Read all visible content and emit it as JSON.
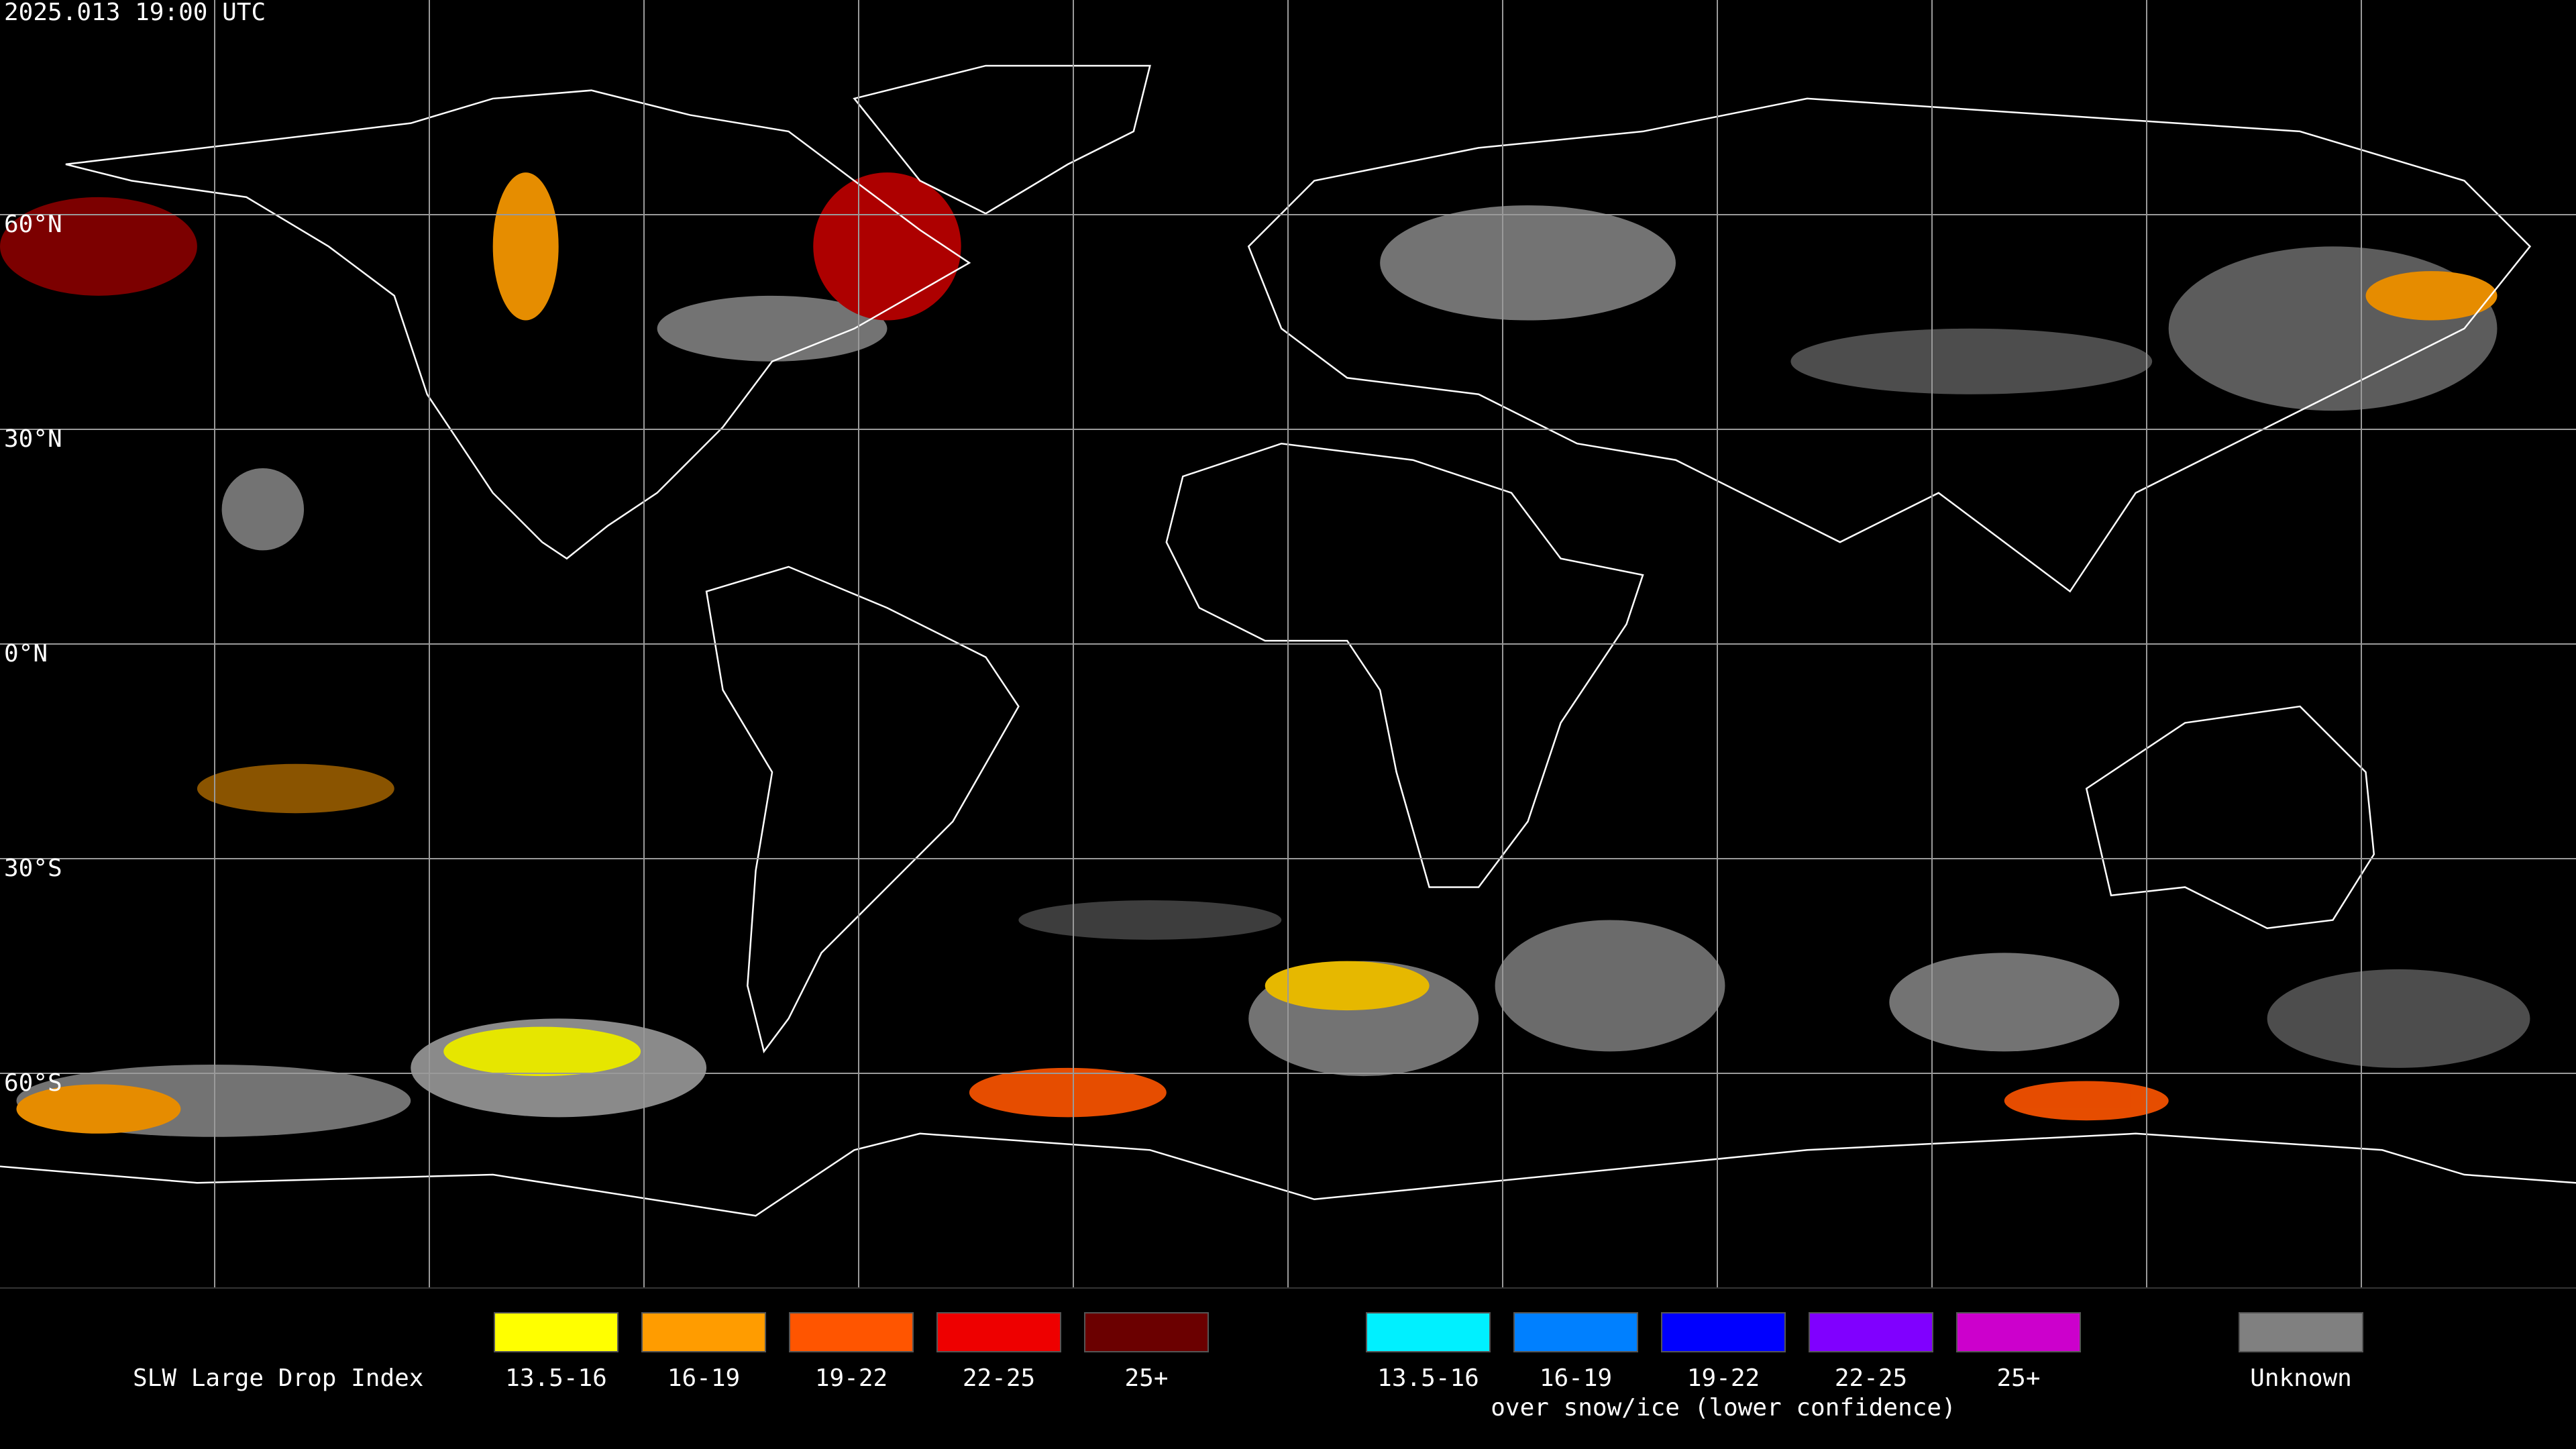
{
  "header": {
    "timestamp": "2025.013 19:00 UTC"
  },
  "map": {
    "latitude_labels": [
      "60°N",
      "30°N",
      "0°N",
      "30°S",
      "60°S"
    ]
  },
  "legend": {
    "title": "SLW Large Drop Index",
    "groups": [
      {
        "items": [
          {
            "label": "13.5-16",
            "color": "#ffff00"
          },
          {
            "label": "16-19",
            "color": "#ff9c00"
          },
          {
            "label": "19-22",
            "color": "#ff5500"
          },
          {
            "label": "22-25",
            "color": "#ee0000"
          },
          {
            "label": "25+",
            "color": "#6b0000"
          }
        ]
      },
      {
        "caption": "over snow/ice (lower confidence)",
        "items": [
          {
            "label": "13.5-16",
            "color": "#00f0ff"
          },
          {
            "label": "16-19",
            "color": "#0080ff"
          },
          {
            "label": "19-22",
            "color": "#0000ff"
          },
          {
            "label": "22-25",
            "color": "#8000ff"
          },
          {
            "label": "25+",
            "color": "#cc00cc"
          }
        ]
      },
      {
        "items": [
          {
            "label": "Unknown",
            "color": "#808080"
          }
        ]
      }
    ]
  }
}
